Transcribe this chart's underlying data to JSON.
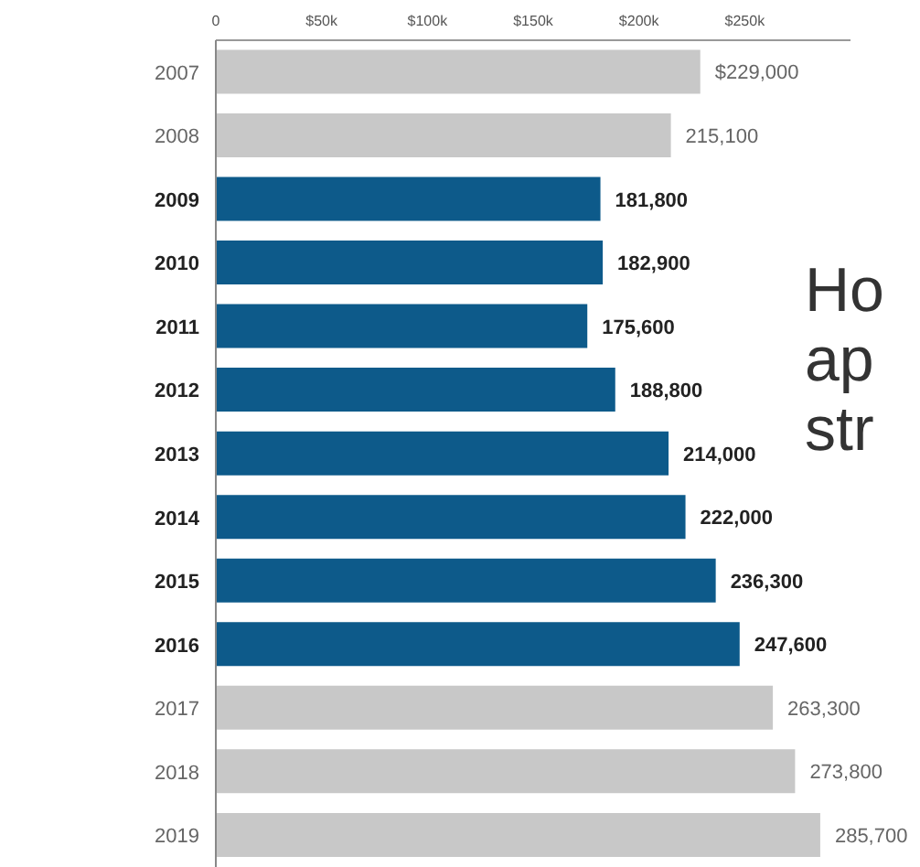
{
  "chart_data": {
    "type": "bar",
    "orientation": "horizontal",
    "categories": [
      "2007",
      "2008",
      "2009",
      "2010",
      "2011",
      "2012",
      "2013",
      "2014",
      "2015",
      "2016",
      "2017",
      "2018",
      "2019"
    ],
    "values": [
      229000,
      215100,
      181800,
      182900,
      175600,
      188800,
      214000,
      222000,
      236300,
      247600,
      263300,
      273800,
      285700
    ],
    "colors": [
      "#c8c8c8",
      "#c8c8c8",
      "#0d5a8a",
      "#0d5a8a",
      "#0d5a8a",
      "#0d5a8a",
      "#0d5a8a",
      "#0d5a8a",
      "#0d5a8a",
      "#0d5a8a",
      "#c8c8c8",
      "#c8c8c8",
      "#c8c8c8"
    ],
    "value_labels": [
      "$229,000",
      "215,100",
      "181,800",
      "182,900",
      "175,600",
      "188,800",
      "214,000",
      "222,000",
      "236,300",
      "247,600",
      "263,300",
      "273,800",
      "285,700"
    ],
    "xlim": [
      0,
      300000
    ],
    "xticks": [
      {
        "value": 0,
        "label": "0"
      },
      {
        "value": 50000,
        "label": "$50k"
      },
      {
        "value": 100000,
        "label": "$100k"
      },
      {
        "value": 150000,
        "label": "$150k"
      },
      {
        "value": 200000,
        "label": "$200k"
      },
      {
        "value": 250000,
        "label": "$250k"
      }
    ],
    "annotations": [
      "Ho",
      "ap",
      "str"
    ]
  }
}
